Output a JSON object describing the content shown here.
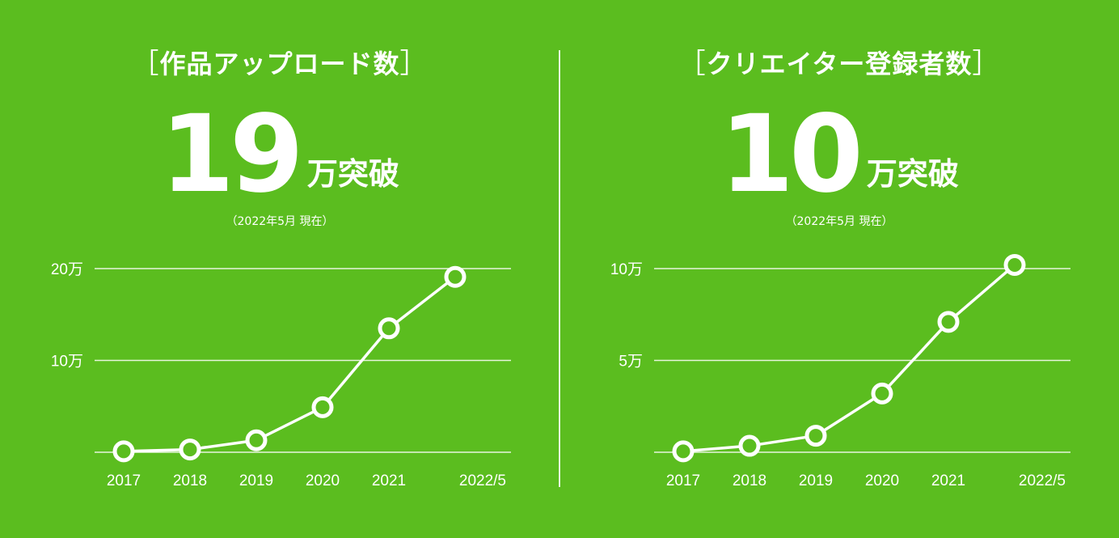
{
  "panels": [
    {
      "title": "作品アップロード数",
      "bracket_open": "［",
      "bracket_close": "］",
      "headline_number": "19",
      "headline_suffix": "万突破",
      "note": "（2022年5月 現在）"
    },
    {
      "title": "クリエイター登録者数",
      "bracket_open": "［",
      "bracket_close": "］",
      "headline_number": "10",
      "headline_suffix": "万突破",
      "note": "（2022年5月 現在）"
    }
  ],
  "colors": {
    "background": "#5bbd1f",
    "foreground": "#ffffff"
  },
  "chart_data": [
    {
      "type": "line",
      "categories": [
        "2017",
        "2018",
        "2019",
        "2020",
        "2021",
        "2022/5"
      ],
      "series": [
        {
          "values": [
            0.1,
            0.3,
            1.3,
            4.9,
            13.5,
            19.1
          ]
        }
      ],
      "y_unit": "万",
      "yticks": [
        {
          "value": 10,
          "label": "10万"
        },
        {
          "value": 20,
          "label": "20万"
        }
      ],
      "ylim": [
        0,
        20
      ],
      "grid": true
    },
    {
      "type": "line",
      "categories": [
        "2017",
        "2018",
        "2019",
        "2020",
        "2021",
        "2022/5"
      ],
      "series": [
        {
          "values": [
            0.05,
            0.35,
            0.9,
            3.2,
            7.1,
            10.2
          ]
        }
      ],
      "y_unit": "万",
      "yticks": [
        {
          "value": 5,
          "label": "5万"
        },
        {
          "value": 10,
          "label": "10万"
        }
      ],
      "ylim": [
        0,
        10
      ],
      "grid": true
    }
  ]
}
